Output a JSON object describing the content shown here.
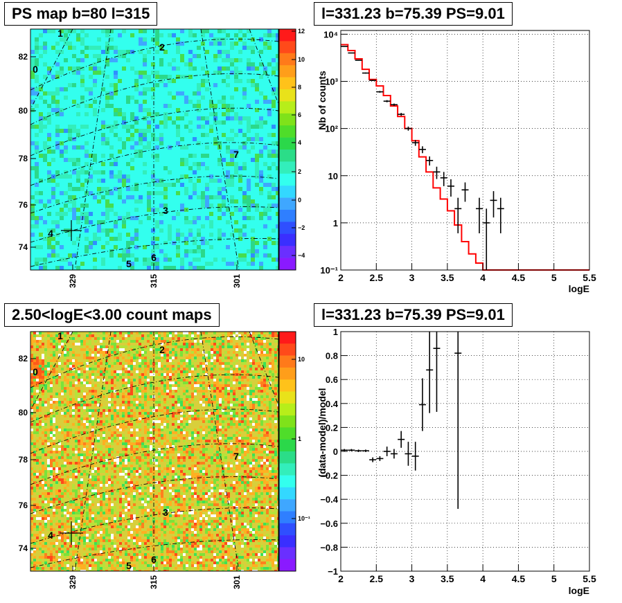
{
  "panels": {
    "tl": {
      "title": "PS map b=80 l=315",
      "y_ticks": [
        "82",
        "80",
        "78",
        "76",
        "74"
      ],
      "x_ticks": [
        "329",
        "315",
        "301"
      ],
      "colorbar_ticks": [
        "12",
        "10",
        "8",
        "6",
        "4",
        "2",
        "0",
        "−2",
        "−4"
      ],
      "source_labels": [
        "0",
        "1",
        "2",
        "3",
        "4",
        "5",
        "6",
        "7"
      ]
    },
    "bl": {
      "title": "2.50<logE<3.00 count maps",
      "y_ticks": [
        "82",
        "80",
        "78",
        "76",
        "74"
      ],
      "x_ticks": [
        "329",
        "315",
        "301"
      ],
      "colorbar_ticks": [
        "10",
        "1",
        "10⁻¹"
      ],
      "source_labels": [
        "0",
        "1",
        "2",
        "3",
        "4",
        "5",
        "6",
        "7"
      ]
    },
    "tr": {
      "title": "l=331.23 b=75.39 PS=9.01",
      "ylabel": "Nb of counts",
      "xlabel": "logE",
      "x_ticks": [
        "2",
        "2.5",
        "3",
        "3.5",
        "4",
        "4.5",
        "5",
        "5.5"
      ],
      "y_ticks": [
        "10⁻¹",
        "1",
        "10",
        "10²",
        "10³",
        "10⁴"
      ]
    },
    "br": {
      "title": "l=331.23 b=75.39 PS=9.01",
      "ylabel": "(data-model)/model",
      "xlabel": "logE",
      "x_ticks": [
        "2",
        "2.5",
        "3",
        "3.5",
        "4",
        "4.5",
        "5",
        "5.5"
      ],
      "y_ticks": [
        "1",
        "0.8",
        "0.6",
        "0.4",
        "0.2",
        "0",
        "−0.2",
        "−0.4",
        "−0.6",
        "−0.8",
        "−1"
      ]
    }
  },
  "colors": {
    "model": "#ff0000",
    "data": "#000000",
    "map_base": "#33ffee",
    "count_base": "#ddd23a"
  },
  "chart_data": [
    {
      "type": "line",
      "panel": "counts-spectrum",
      "scale": "log-y",
      "xlim": [
        2,
        5.5
      ],
      "ylim": [
        0.1,
        12000
      ],
      "series": [
        {
          "role": "data",
          "x": [
            2.05,
            2.15,
            2.25,
            2.35,
            2.45,
            2.55,
            2.65,
            2.75,
            2.85,
            2.95,
            3.05,
            3.15,
            3.25,
            3.35,
            3.45,
            3.55,
            3.65,
            3.75,
            3.95,
            4.05,
            4.15,
            4.25
          ],
          "y": [
            5500,
            4000,
            2800,
            1500,
            1050,
            600,
            380,
            320,
            200,
            100,
            50,
            36,
            21,
            12,
            9,
            6,
            2,
            5,
            2,
            1,
            3,
            2
          ],
          "err": [
            80,
            60,
            50,
            40,
            30,
            25,
            20,
            18,
            14,
            10,
            7,
            6,
            4.6,
            3.5,
            3,
            2.4,
            1.4,
            2.2,
            1.4,
            1,
            1.7,
            1.4
          ]
        },
        {
          "role": "model",
          "x": [
            2.0,
            2.1,
            2.2,
            2.3,
            2.4,
            2.5,
            2.6,
            2.7,
            2.8,
            2.9,
            3.0,
            3.1,
            3.2,
            3.3,
            3.4,
            3.5,
            3.6,
            3.7,
            3.8,
            3.9,
            4.0,
            5.5
          ],
          "y": [
            6000,
            4500,
            3000,
            1800,
            1100,
            800,
            500,
            300,
            180,
            100,
            55,
            25,
            12,
            5.5,
            3.2,
            1.8,
            0.9,
            0.4,
            0.22,
            0.14,
            0.1,
            0.1
          ]
        }
      ]
    },
    {
      "type": "scatter",
      "panel": "residuals",
      "xlim": [
        2,
        5.5
      ],
      "ylim": [
        -1,
        1
      ],
      "series": [
        {
          "role": "data",
          "x": [
            2.05,
            2.15,
            2.25,
            2.35,
            2.45,
            2.55,
            2.65,
            2.75,
            2.85,
            2.95,
            3.05,
            3.15,
            3.25,
            3.35,
            3.65
          ],
          "y": [
            0.01,
            0.01,
            0.005,
            0.005,
            -0.07,
            -0.06,
            0.0,
            -0.02,
            0.1,
            -0.02,
            -0.04,
            0.39,
            0.68,
            0.86,
            0.82
          ],
          "err": [
            0.01,
            0.01,
            0.01,
            0.01,
            0.02,
            0.02,
            0.04,
            0.04,
            0.07,
            0.1,
            0.12,
            0.22,
            0.36,
            0.53,
            1.3
          ]
        }
      ]
    }
  ]
}
